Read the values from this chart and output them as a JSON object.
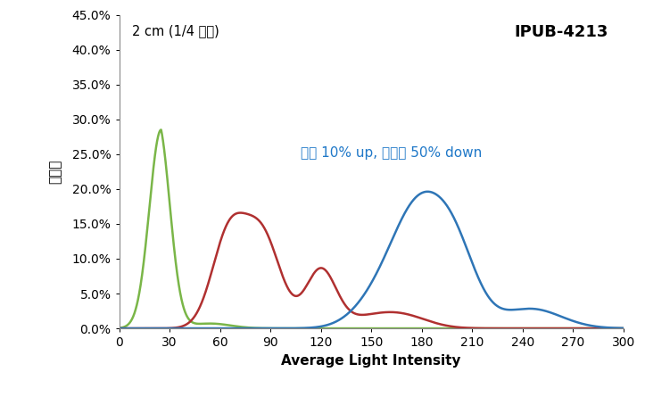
{
  "title_left": "2 cm (1/4 지점)",
  "title_right": "IPUB-4213",
  "annotation": "성능 10% up, 균일성 50% down",
  "annotation_color": "#1F78C8",
  "xlabel": "Average Light Intensity",
  "ylabel": "빈도수",
  "xlim": [
    0,
    300
  ],
  "ylim": [
    0,
    0.45
  ],
  "yticks": [
    0.0,
    0.05,
    0.1,
    0.15,
    0.2,
    0.25,
    0.3,
    0.35,
    0.4,
    0.45
  ],
  "xticks": [
    0,
    30,
    60,
    90,
    120,
    150,
    180,
    210,
    240,
    270,
    300
  ],
  "green_color": "#7AB648",
  "red_color": "#B03030",
  "blue_color": "#2E75B6",
  "line_width": 1.8
}
